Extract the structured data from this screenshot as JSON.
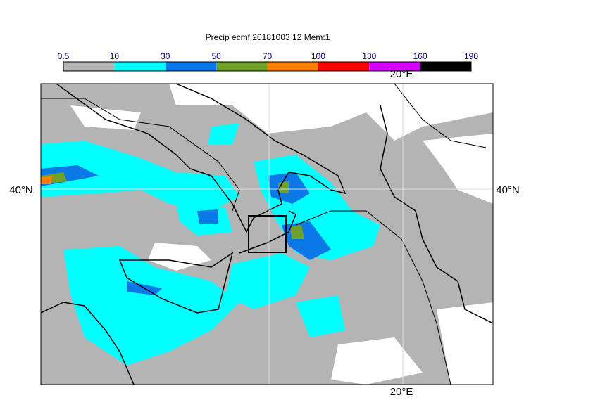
{
  "title": "Precip ecmf 20181003 12 Mem:1",
  "legend": {
    "bounds": [
      0.5,
      10,
      30,
      50,
      70,
      100,
      130,
      160,
      190
    ],
    "colors": [
      "#b4b4b4",
      "#00ffff",
      "#0a78e6",
      "#6ea02a",
      "#ff8000",
      "#ff0000",
      "#d200ff",
      "#000000"
    ]
  },
  "grid_labels": {
    "lon_top": "20°E",
    "lon_bottom": "20°E",
    "lat_left": "40°N",
    "lat_right": "40°N"
  }
}
